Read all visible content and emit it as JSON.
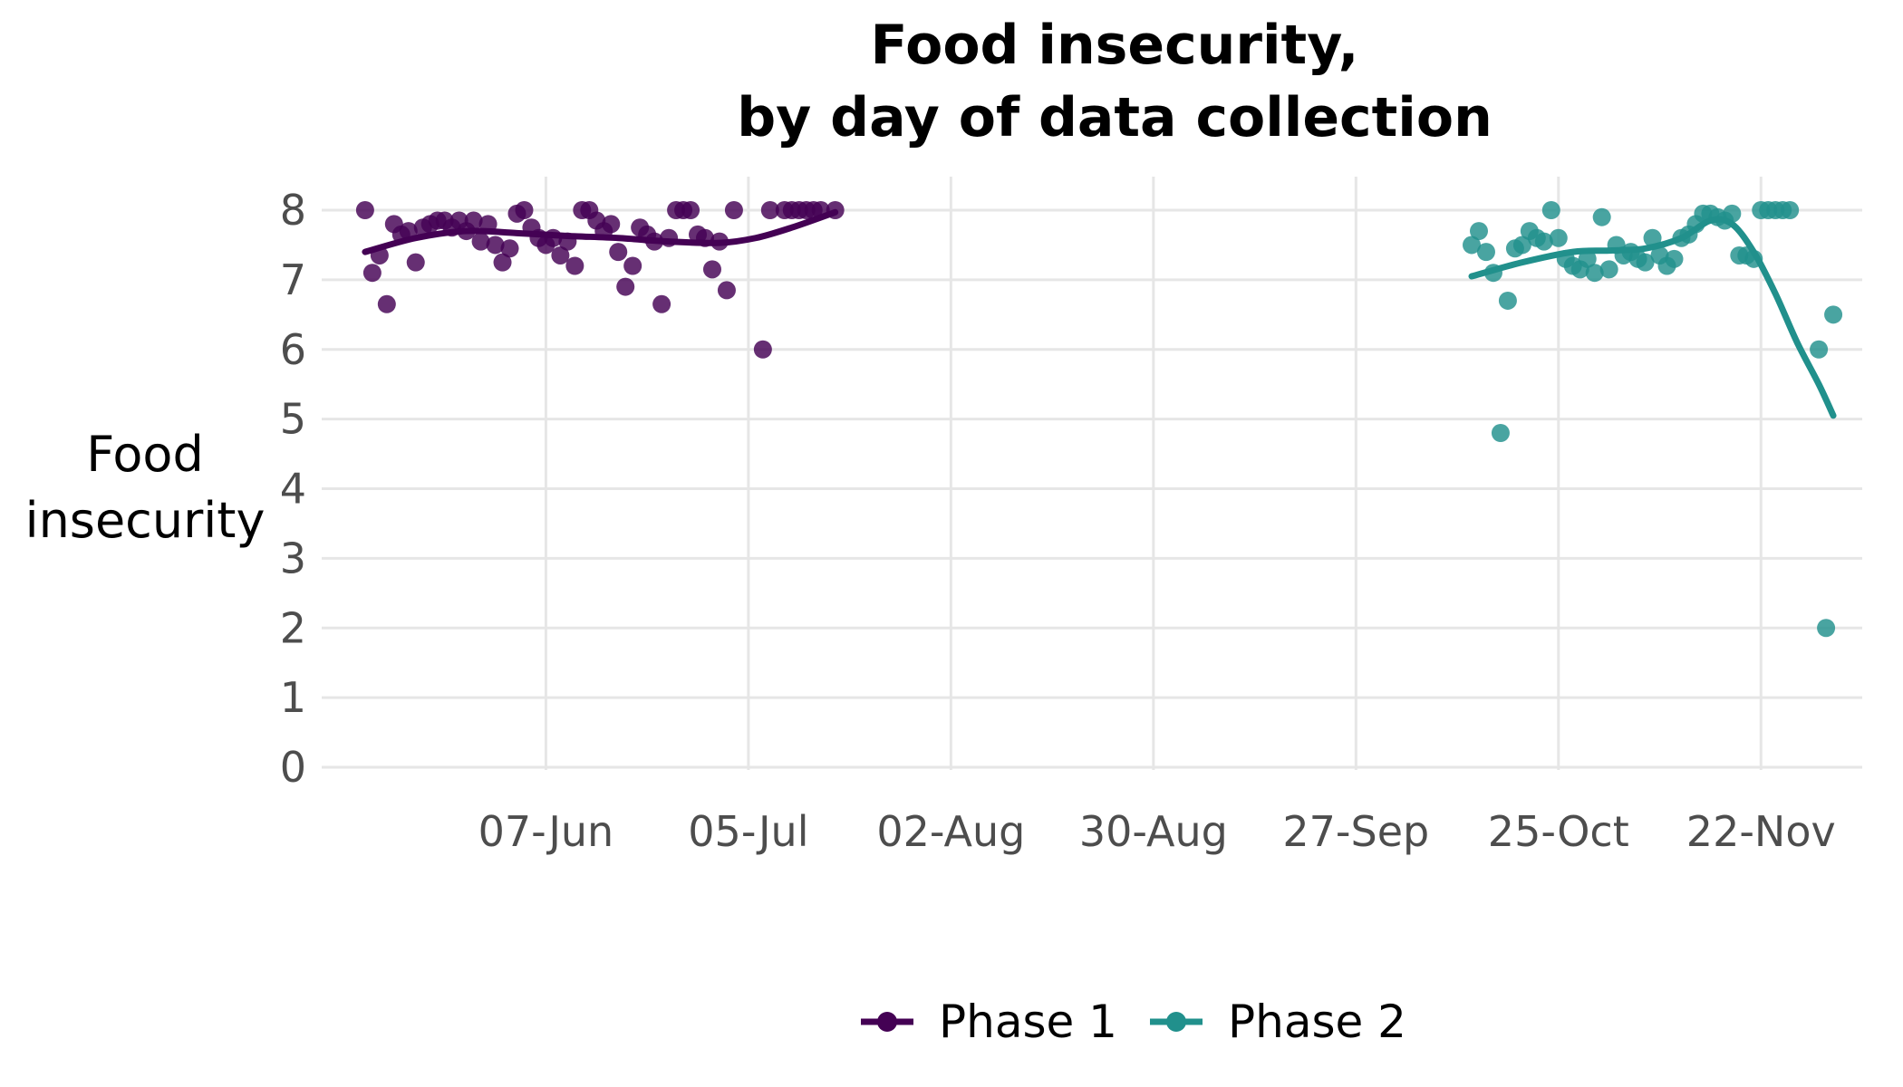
{
  "chart_data": {
    "type": "scatter",
    "title": [
      "Food insecurity,",
      "by day of data collection"
    ],
    "ylabel": [
      "Food",
      "insecurity"
    ],
    "xlabel": "",
    "ylim": [
      0,
      8
    ],
    "xlim": [
      "2020-05-07",
      "2020-12-06"
    ],
    "y_ticks": [
      0,
      1,
      2,
      3,
      4,
      5,
      6,
      7,
      8
    ],
    "x_ticks": [
      {
        "date": "2020-06-07",
        "label": "07-Jun"
      },
      {
        "date": "2020-07-05",
        "label": "05-Jul"
      },
      {
        "date": "2020-08-02",
        "label": "02-Aug"
      },
      {
        "date": "2020-08-30",
        "label": "30-Aug"
      },
      {
        "date": "2020-09-27",
        "label": "27-Sep"
      },
      {
        "date": "2020-10-25",
        "label": "25-Oct"
      },
      {
        "date": "2020-11-22",
        "label": "22-Nov"
      }
    ],
    "grid": true,
    "legend_position": "bottom",
    "series": [
      {
        "name": "Phase 1",
        "color": "#440154",
        "points": [
          [
            "2020-05-13",
            8.0
          ],
          [
            "2020-05-14",
            7.1
          ],
          [
            "2020-05-15",
            7.35
          ],
          [
            "2020-05-16",
            6.65
          ],
          [
            "2020-05-17",
            7.8
          ],
          [
            "2020-05-18",
            7.65
          ],
          [
            "2020-05-19",
            7.7
          ],
          [
            "2020-05-20",
            7.25
          ],
          [
            "2020-05-21",
            7.75
          ],
          [
            "2020-05-22",
            7.8
          ],
          [
            "2020-05-23",
            7.85
          ],
          [
            "2020-05-24",
            7.85
          ],
          [
            "2020-05-25",
            7.75
          ],
          [
            "2020-05-26",
            7.85
          ],
          [
            "2020-05-27",
            7.7
          ],
          [
            "2020-05-28",
            7.85
          ],
          [
            "2020-05-29",
            7.55
          ],
          [
            "2020-05-30",
            7.8
          ],
          [
            "2020-05-31",
            7.5
          ],
          [
            "2020-06-01",
            7.25
          ],
          [
            "2020-06-02",
            7.45
          ],
          [
            "2020-06-03",
            7.95
          ],
          [
            "2020-06-04",
            8.0
          ],
          [
            "2020-06-05",
            7.75
          ],
          [
            "2020-06-06",
            7.6
          ],
          [
            "2020-06-07",
            7.5
          ],
          [
            "2020-06-08",
            7.6
          ],
          [
            "2020-06-09",
            7.35
          ],
          [
            "2020-06-10",
            7.55
          ],
          [
            "2020-06-11",
            7.2
          ],
          [
            "2020-06-12",
            8.0
          ],
          [
            "2020-06-13",
            8.0
          ],
          [
            "2020-06-14",
            7.85
          ],
          [
            "2020-06-15",
            7.7
          ],
          [
            "2020-06-16",
            7.8
          ],
          [
            "2020-06-17",
            7.4
          ],
          [
            "2020-06-18",
            6.9
          ],
          [
            "2020-06-19",
            7.2
          ],
          [
            "2020-06-20",
            7.75
          ],
          [
            "2020-06-21",
            7.65
          ],
          [
            "2020-06-22",
            7.55
          ],
          [
            "2020-06-23",
            6.65
          ],
          [
            "2020-06-24",
            7.6
          ],
          [
            "2020-06-25",
            8.0
          ],
          [
            "2020-06-26",
            8.0
          ],
          [
            "2020-06-27",
            8.0
          ],
          [
            "2020-06-28",
            7.65
          ],
          [
            "2020-06-29",
            7.6
          ],
          [
            "2020-06-30",
            7.15
          ],
          [
            "2020-07-01",
            7.55
          ],
          [
            "2020-07-02",
            6.85
          ],
          [
            "2020-07-03",
            8.0
          ],
          [
            "2020-07-07",
            6.0
          ],
          [
            "2020-07-08",
            8.0
          ],
          [
            "2020-07-10",
            8.0
          ],
          [
            "2020-07-11",
            8.0
          ],
          [
            "2020-07-12",
            8.0
          ],
          [
            "2020-07-13",
            8.0
          ],
          [
            "2020-07-14",
            8.0
          ],
          [
            "2020-07-15",
            8.0
          ],
          [
            "2020-07-17",
            8.0
          ]
        ],
        "trend": [
          [
            "2020-05-13",
            7.4
          ],
          [
            "2020-05-20",
            7.6
          ],
          [
            "2020-05-27",
            7.7
          ],
          [
            "2020-06-03",
            7.67
          ],
          [
            "2020-06-10",
            7.63
          ],
          [
            "2020-06-17",
            7.6
          ],
          [
            "2020-06-24",
            7.55
          ],
          [
            "2020-07-01",
            7.53
          ],
          [
            "2020-07-06",
            7.6
          ],
          [
            "2020-07-11",
            7.75
          ],
          [
            "2020-07-17",
            7.97
          ]
        ]
      },
      {
        "name": "Phase 2",
        "color": "#21908C",
        "points": [
          [
            "2020-10-13",
            7.5
          ],
          [
            "2020-10-14",
            7.7
          ],
          [
            "2020-10-15",
            7.4
          ],
          [
            "2020-10-16",
            7.1
          ],
          [
            "2020-10-17",
            4.8
          ],
          [
            "2020-10-18",
            6.7
          ],
          [
            "2020-10-19",
            7.45
          ],
          [
            "2020-10-20",
            7.5
          ],
          [
            "2020-10-21",
            7.7
          ],
          [
            "2020-10-22",
            7.6
          ],
          [
            "2020-10-23",
            7.55
          ],
          [
            "2020-10-24",
            8.0
          ],
          [
            "2020-10-25",
            7.6
          ],
          [
            "2020-10-26",
            7.3
          ],
          [
            "2020-10-27",
            7.2
          ],
          [
            "2020-10-28",
            7.15
          ],
          [
            "2020-10-29",
            7.3
          ],
          [
            "2020-10-30",
            7.1
          ],
          [
            "2020-10-31",
            7.9
          ],
          [
            "2020-11-01",
            7.15
          ],
          [
            "2020-11-02",
            7.5
          ],
          [
            "2020-11-03",
            7.35
          ],
          [
            "2020-11-04",
            7.4
          ],
          [
            "2020-11-05",
            7.3
          ],
          [
            "2020-11-06",
            7.25
          ],
          [
            "2020-11-07",
            7.6
          ],
          [
            "2020-11-08",
            7.35
          ],
          [
            "2020-11-09",
            7.2
          ],
          [
            "2020-11-10",
            7.3
          ],
          [
            "2020-11-11",
            7.6
          ],
          [
            "2020-11-12",
            7.65
          ],
          [
            "2020-11-13",
            7.8
          ],
          [
            "2020-11-14",
            7.95
          ],
          [
            "2020-11-15",
            7.95
          ],
          [
            "2020-11-16",
            7.9
          ],
          [
            "2020-11-17",
            7.85
          ],
          [
            "2020-11-18",
            7.95
          ],
          [
            "2020-11-19",
            7.35
          ],
          [
            "2020-11-20",
            7.35
          ],
          [
            "2020-11-21",
            7.3
          ],
          [
            "2020-11-22",
            8.0
          ],
          [
            "2020-11-23",
            8.0
          ],
          [
            "2020-11-24",
            8.0
          ],
          [
            "2020-11-25",
            8.0
          ],
          [
            "2020-11-26",
            8.0
          ],
          [
            "2020-11-30",
            6.0
          ],
          [
            "2020-12-01",
            2.0
          ],
          [
            "2020-12-02",
            6.5
          ]
        ],
        "trend": [
          [
            "2020-10-13",
            7.05
          ],
          [
            "2020-10-20",
            7.25
          ],
          [
            "2020-10-27",
            7.4
          ],
          [
            "2020-11-01",
            7.42
          ],
          [
            "2020-11-06",
            7.45
          ],
          [
            "2020-11-11",
            7.6
          ],
          [
            "2020-11-15",
            7.85
          ],
          [
            "2020-11-18",
            7.8
          ],
          [
            "2020-11-21",
            7.4
          ],
          [
            "2020-11-24",
            6.8
          ],
          [
            "2020-11-27",
            6.1
          ],
          [
            "2020-11-30",
            5.5
          ],
          [
            "2020-12-02",
            5.05
          ]
        ]
      }
    ]
  }
}
